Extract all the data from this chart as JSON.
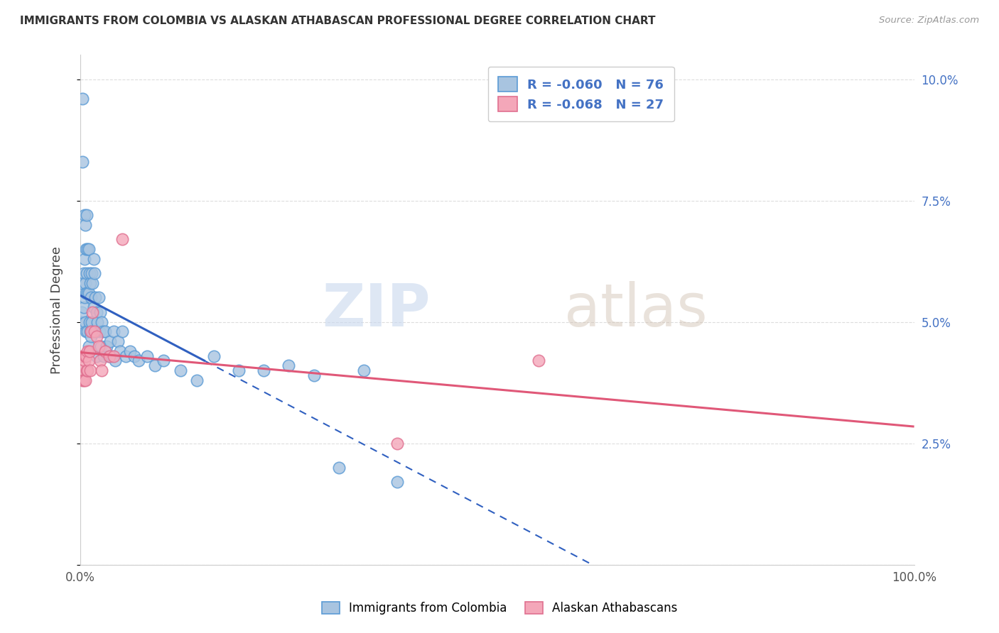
{
  "title": "IMMIGRANTS FROM COLOMBIA VS ALASKAN ATHABASCAN PROFESSIONAL DEGREE CORRELATION CHART",
  "source": "Source: ZipAtlas.com",
  "ylabel": "Professional Degree",
  "watermark": "ZIPatlas",
  "legend_r1": "-0.060",
  "legend_n1": "76",
  "legend_r2": "-0.068",
  "legend_n2": "27",
  "ytick_labels": [
    "",
    "2.5%",
    "5.0%",
    "7.5%",
    "10.0%"
  ],
  "ytick_vals": [
    0.0,
    0.025,
    0.05,
    0.075,
    0.1
  ],
  "colombia_fill": "#a8c4e0",
  "colombia_edge": "#5b9bd5",
  "athabascan_fill": "#f4a7b9",
  "athabascan_edge": "#e07090",
  "colombia_line_color": "#3060c0",
  "athabascan_line_color": "#e05878",
  "title_color": "#333333",
  "source_color": "#999999",
  "grid_color": "#dddddd",
  "legend_edge_color": "#cccccc",
  "right_tick_color": "#4472c4",
  "bottom_label_color": "#555555",
  "xlim": [
    0.0,
    1.0
  ],
  "ylim": [
    0.0,
    0.105
  ],
  "colombia_x": [
    0.001,
    0.002,
    0.002,
    0.003,
    0.003,
    0.004,
    0.004,
    0.005,
    0.005,
    0.005,
    0.006,
    0.006,
    0.006,
    0.007,
    0.007,
    0.007,
    0.008,
    0.008,
    0.009,
    0.009,
    0.009,
    0.01,
    0.01,
    0.01,
    0.011,
    0.011,
    0.012,
    0.012,
    0.013,
    0.013,
    0.014,
    0.014,
    0.015,
    0.015,
    0.016,
    0.016,
    0.017,
    0.018,
    0.019,
    0.02,
    0.02,
    0.021,
    0.022,
    0.023,
    0.024,
    0.025,
    0.026,
    0.027,
    0.028,
    0.03,
    0.032,
    0.034,
    0.036,
    0.038,
    0.04,
    0.042,
    0.045,
    0.048,
    0.05,
    0.055,
    0.06,
    0.065,
    0.07,
    0.08,
    0.09,
    0.1,
    0.12,
    0.14,
    0.16,
    0.19,
    0.22,
    0.25,
    0.28,
    0.31,
    0.34,
    0.38
  ],
  "colombia_y": [
    0.05,
    0.058,
    0.052,
    0.096,
    0.083,
    0.06,
    0.053,
    0.072,
    0.063,
    0.055,
    0.07,
    0.058,
    0.05,
    0.065,
    0.056,
    0.048,
    0.072,
    0.06,
    0.065,
    0.056,
    0.048,
    0.065,
    0.056,
    0.045,
    0.06,
    0.05,
    0.058,
    0.048,
    0.055,
    0.047,
    0.06,
    0.05,
    0.058,
    0.048,
    0.063,
    0.053,
    0.06,
    0.055,
    0.048,
    0.052,
    0.043,
    0.05,
    0.055,
    0.048,
    0.052,
    0.045,
    0.05,
    0.048,
    0.043,
    0.048,
    0.045,
    0.043,
    0.046,
    0.043,
    0.048,
    0.042,
    0.046,
    0.044,
    0.048,
    0.043,
    0.044,
    0.043,
    0.042,
    0.043,
    0.041,
    0.042,
    0.04,
    0.038,
    0.043,
    0.04,
    0.04,
    0.041,
    0.039,
    0.02,
    0.04,
    0.017
  ],
  "athabascan_x": [
    0.001,
    0.002,
    0.003,
    0.004,
    0.005,
    0.006,
    0.006,
    0.007,
    0.008,
    0.009,
    0.009,
    0.01,
    0.011,
    0.012,
    0.013,
    0.015,
    0.017,
    0.02,
    0.022,
    0.024,
    0.026,
    0.03,
    0.035,
    0.04,
    0.05,
    0.38,
    0.55
  ],
  "athabascan_y": [
    0.04,
    0.043,
    0.038,
    0.038,
    0.042,
    0.038,
    0.043,
    0.043,
    0.04,
    0.044,
    0.04,
    0.042,
    0.044,
    0.04,
    0.048,
    0.052,
    0.048,
    0.047,
    0.045,
    0.042,
    0.04,
    0.044,
    0.043,
    0.043,
    0.067,
    0.025,
    0.042
  ]
}
